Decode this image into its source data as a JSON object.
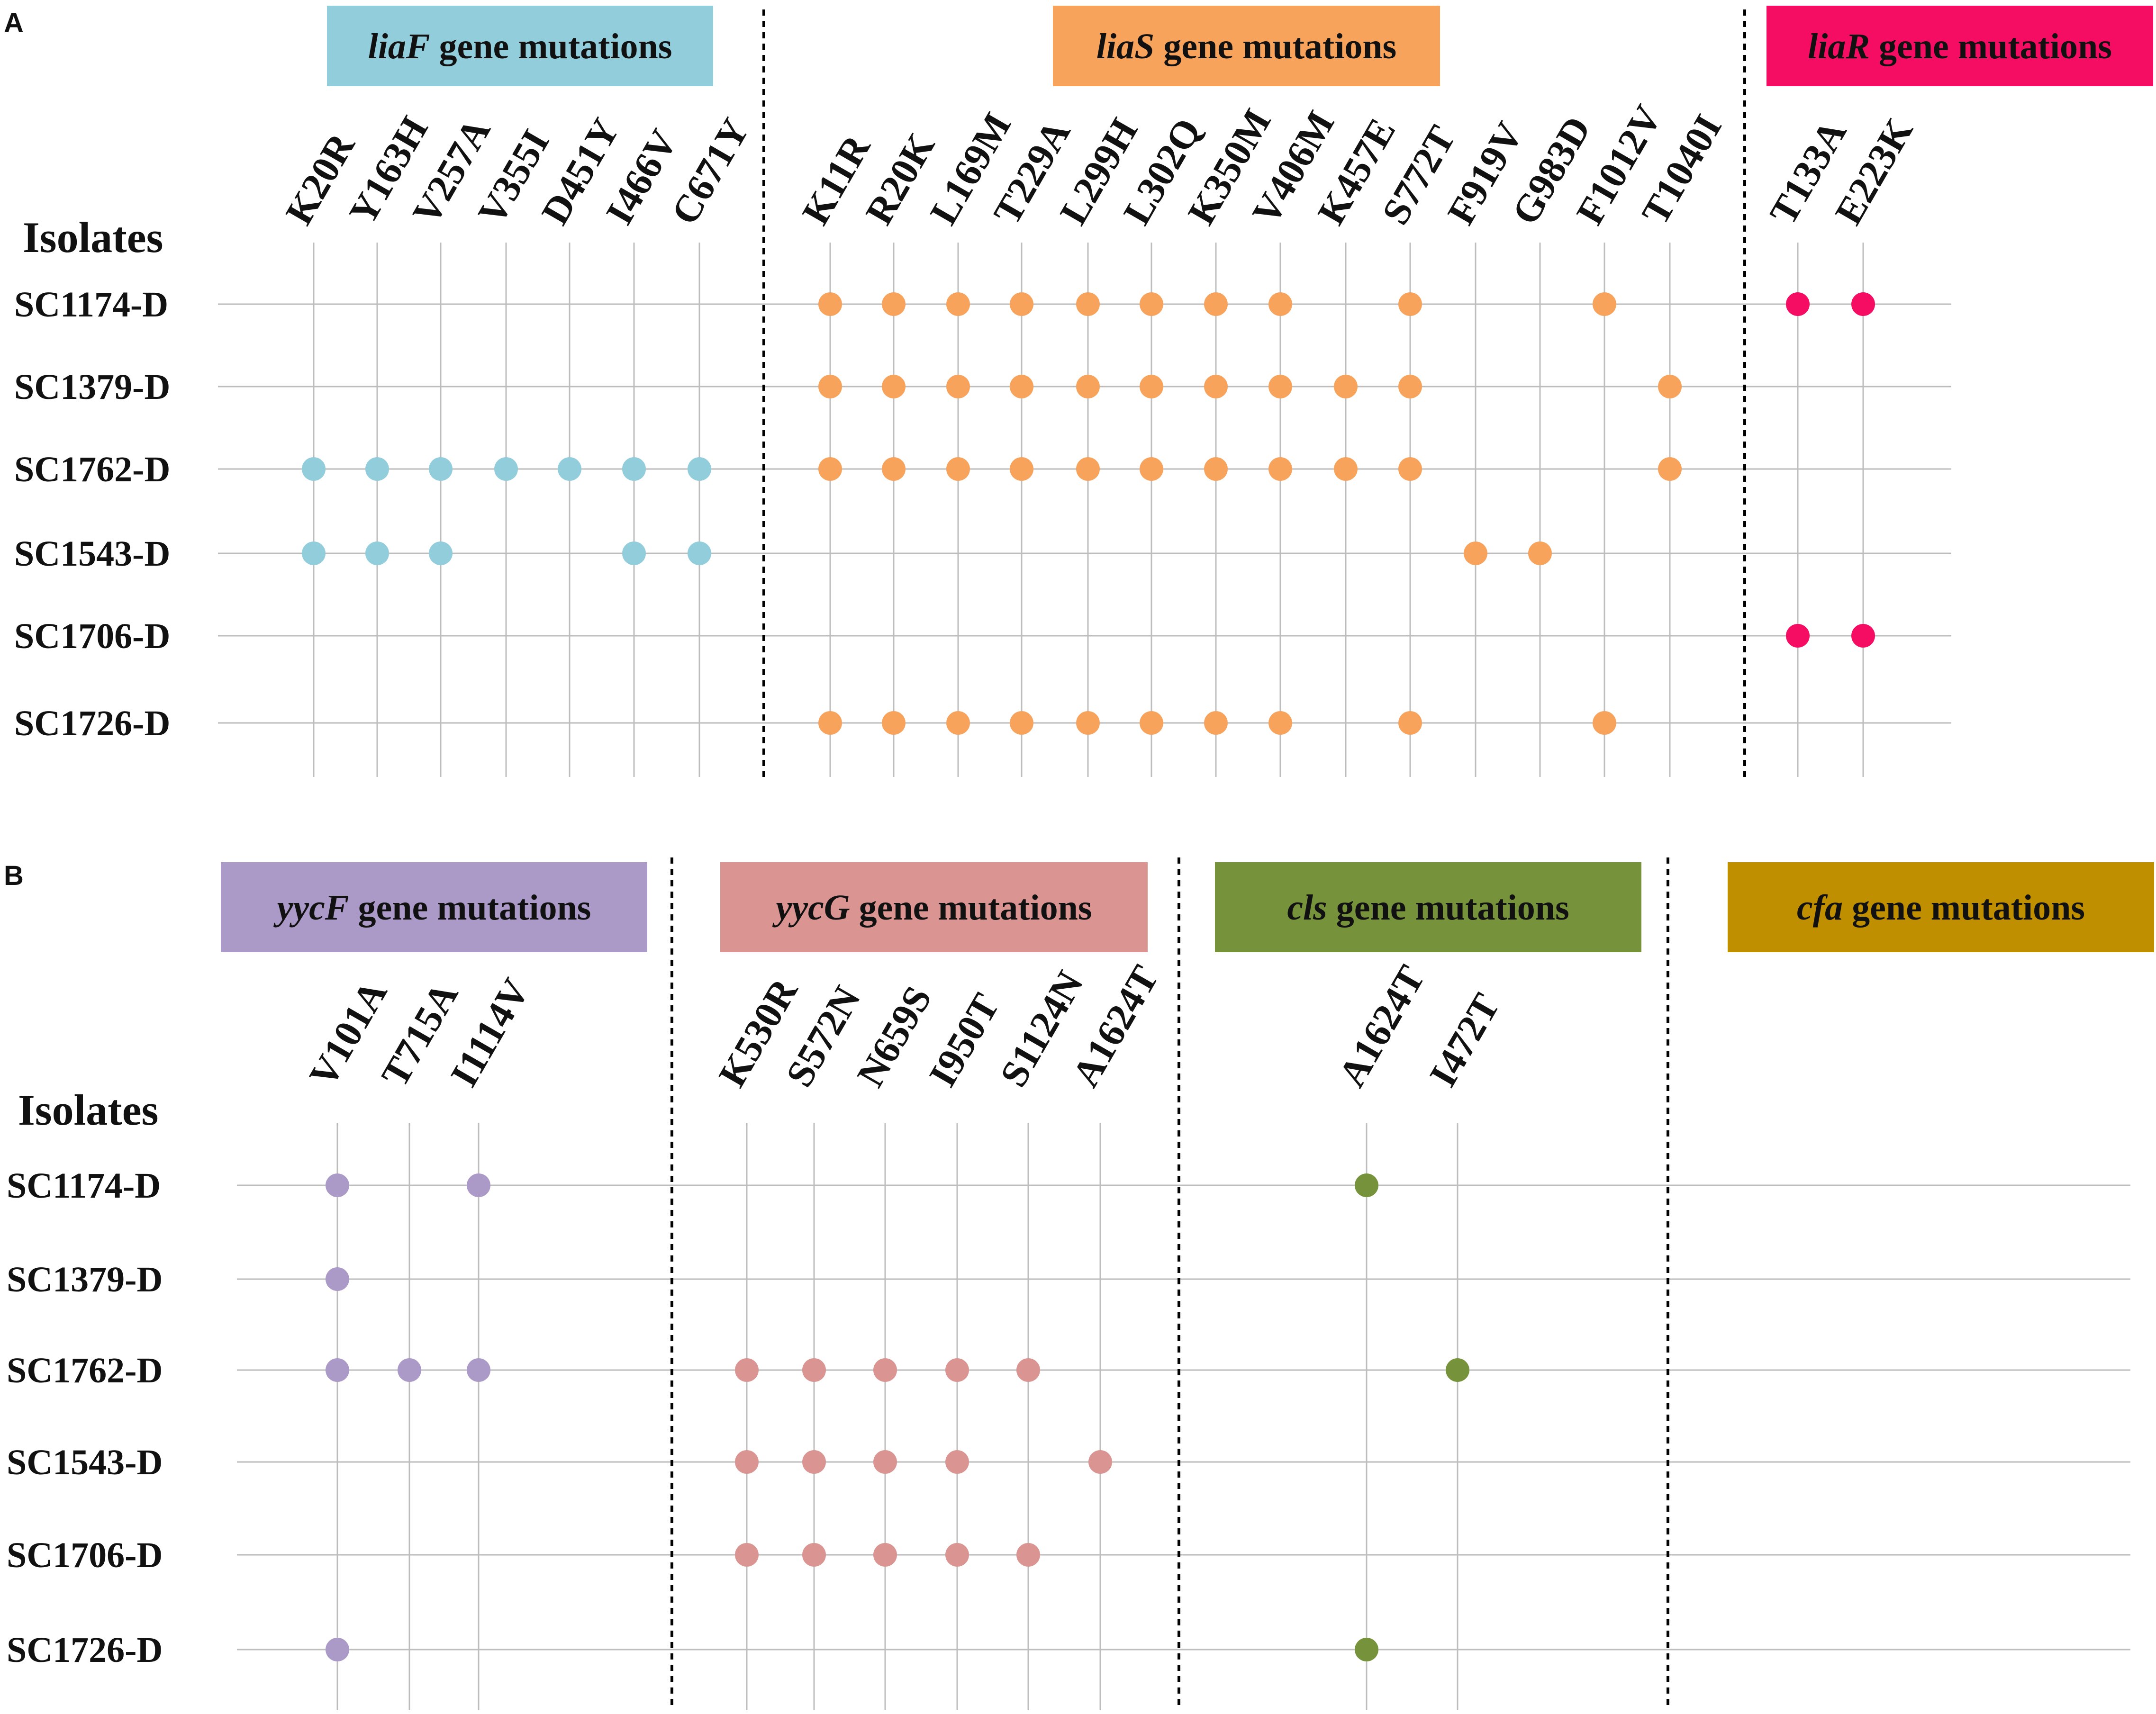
{
  "colors": {
    "liaF": "#92cddc",
    "liaS": "#f7a35c",
    "liaR": "#f50c63",
    "yycF": "#ab9ac8",
    "yycG": "#da9593",
    "cls": "#76933c",
    "cfa": "#bf8f00"
  },
  "chart_data": [
    {
      "type": "dot-matrix",
      "panel": "A",
      "isolates_title": "Isolates",
      "isolates": [
        "SC1174-D",
        "SC1379-D",
        "SC1762-D",
        "SC1543-D",
        "SC1706-D",
        "SC1726-D"
      ],
      "genes": [
        {
          "key": "liaF",
          "name": "liaF",
          "suffix": " gene mutations",
          "mutations": [
            "K20R",
            "Y163H",
            "V257A",
            "V355I",
            "D451Y",
            "I466V",
            "C671Y"
          ],
          "present": {
            "SC1174-D": [],
            "SC1379-D": [],
            "SC1762-D": [
              "K20R",
              "Y163H",
              "V257A",
              "V355I",
              "D451Y",
              "I466V",
              "C671Y"
            ],
            "SC1543-D": [
              "K20R",
              "Y163H",
              "V257A",
              "I466V",
              "C671Y"
            ],
            "SC1706-D": [],
            "SC1726-D": []
          }
        },
        {
          "key": "liaS",
          "name": "liaS",
          "suffix": " gene mutations",
          "mutations": [
            "K11R",
            "R20K",
            "L169M",
            "T229A",
            "L299H",
            "L302Q",
            "K350M",
            "V406M",
            "K457E",
            "S772T",
            "F919V",
            "G983D",
            "F1012V",
            "T1040I"
          ],
          "present": {
            "SC1174-D": [
              "K11R",
              "R20K",
              "L169M",
              "T229A",
              "L299H",
              "L302Q",
              "K350M",
              "V406M",
              "S772T",
              "F1012V"
            ],
            "SC1379-D": [
              "K11R",
              "R20K",
              "L169M",
              "T229A",
              "L299H",
              "L302Q",
              "K350M",
              "V406M",
              "K457E",
              "S772T",
              "T1040I"
            ],
            "SC1762-D": [
              "K11R",
              "R20K",
              "L169M",
              "T229A",
              "L299H",
              "L302Q",
              "K350M",
              "V406M",
              "K457E",
              "S772T",
              "T1040I"
            ],
            "SC1543-D": [
              "F919V",
              "G983D"
            ],
            "SC1706-D": [],
            "SC1726-D": [
              "K11R",
              "R20K",
              "L169M",
              "T229A",
              "L299H",
              "L302Q",
              "K350M",
              "V406M",
              "S772T",
              "F1012V"
            ]
          }
        },
        {
          "key": "liaR",
          "name": "liaR",
          "suffix": " gene mutations",
          "mutations": [
            "T133A",
            "E223K"
          ],
          "present": {
            "SC1174-D": [
              "T133A",
              "E223K"
            ],
            "SC1379-D": [],
            "SC1762-D": [],
            "SC1543-D": [],
            "SC1706-D": [
              "T133A",
              "E223K"
            ],
            "SC1726-D": []
          }
        }
      ]
    },
    {
      "type": "dot-matrix",
      "panel": "B",
      "isolates_title": "Isolates",
      "isolates": [
        "SC1174-D",
        "SC1379-D",
        "SC1762-D",
        "SC1543-D",
        "SC1706-D",
        "SC1726-D"
      ],
      "genes": [
        {
          "key": "yycF",
          "name": "yycF",
          "suffix": " gene mutations",
          "mutations": [
            "V101A",
            "T715A",
            "I1114V"
          ],
          "present": {
            "SC1174-D": [
              "V101A",
              "I1114V"
            ],
            "SC1379-D": [
              "V101A"
            ],
            "SC1762-D": [
              "V101A",
              "T715A",
              "I1114V"
            ],
            "SC1543-D": [],
            "SC1706-D": [],
            "SC1726-D": [
              "V101A"
            ]
          }
        },
        {
          "key": "yycG",
          "name": "yycG",
          "suffix": " gene mutations",
          "mutations": [
            "K530R",
            "S572N",
            "N659S",
            "I950T",
            "S1124N",
            "A1624T"
          ],
          "present": {
            "SC1174-D": [],
            "SC1379-D": [],
            "SC1762-D": [
              "K530R",
              "S572N",
              "N659S",
              "I950T",
              "S1124N"
            ],
            "SC1543-D": [
              "K530R",
              "S572N",
              "N659S",
              "I950T",
              "A1624T"
            ],
            "SC1706-D": [
              "K530R",
              "S572N",
              "N659S",
              "I950T",
              "S1124N"
            ],
            "SC1726-D": []
          }
        },
        {
          "key": "cls",
          "name": "cls",
          "suffix": " gene mutations",
          "mutations": [
            "A1624T",
            "I472T"
          ],
          "present": {
            "SC1174-D": [
              "A1624T"
            ],
            "SC1379-D": [],
            "SC1762-D": [
              "I472T"
            ],
            "SC1543-D": [],
            "SC1706-D": [],
            "SC1726-D": [
              "A1624T"
            ]
          }
        },
        {
          "key": "cfa",
          "name": "cfa",
          "suffix": " gene mutations",
          "mutations": [],
          "present": {}
        }
      ]
    }
  ]
}
